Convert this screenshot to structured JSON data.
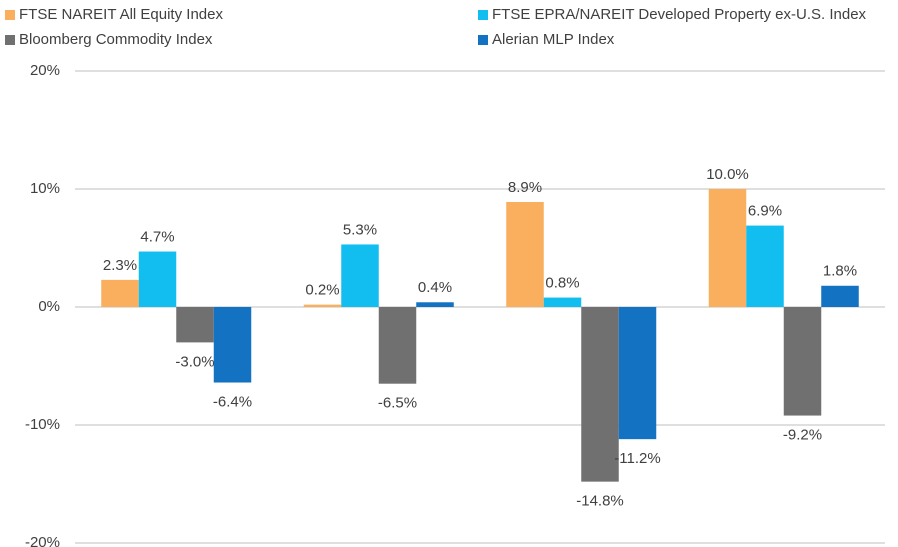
{
  "chart_data": {
    "type": "bar",
    "categories": [
      null,
      null,
      null,
      null
    ],
    "series": [
      {
        "name": "FTSE NAREIT All Equity Index",
        "color": "#f9af5e",
        "values": [
          2.3,
          0.2,
          8.9,
          10.0
        ],
        "value_labels": [
          "2.3%",
          "0.2%",
          "8.9%",
          "10.0%"
        ]
      },
      {
        "name": "FTSE EPRA/NAREIT Developed Property ex-U.S. Index",
        "color": "#12bdf0",
        "values": [
          4.7,
          5.3,
          0.8,
          6.9
        ],
        "value_labels": [
          "4.7%",
          "5.3%",
          "0.8%",
          "6.9%"
        ]
      },
      {
        "name": "Bloomberg Commodity Index",
        "color": "#707070",
        "values": [
          -3.0,
          -6.5,
          -14.8,
          -9.2
        ],
        "value_labels": [
          "-3.0%",
          "-6.5%",
          "-14.8%",
          "-9.2%"
        ]
      },
      {
        "name": "Alerian MLP Index",
        "color": "#1372c1",
        "values": [
          -6.4,
          0.4,
          -11.2,
          1.8
        ],
        "value_labels": [
          "-6.4%",
          "0.4%",
          "-11.2%",
          "1.8%"
        ]
      }
    ],
    "ylim": [
      -20,
      20
    ],
    "yticks": [
      {
        "value": -20,
        "label": "-20%"
      },
      {
        "value": -10,
        "label": "-10%"
      },
      {
        "value": 0,
        "label": "0%"
      },
      {
        "value": 10,
        "label": "10%"
      },
      {
        "value": 20,
        "label": "20%"
      }
    ],
    "grid": true,
    "legend": "top"
  }
}
